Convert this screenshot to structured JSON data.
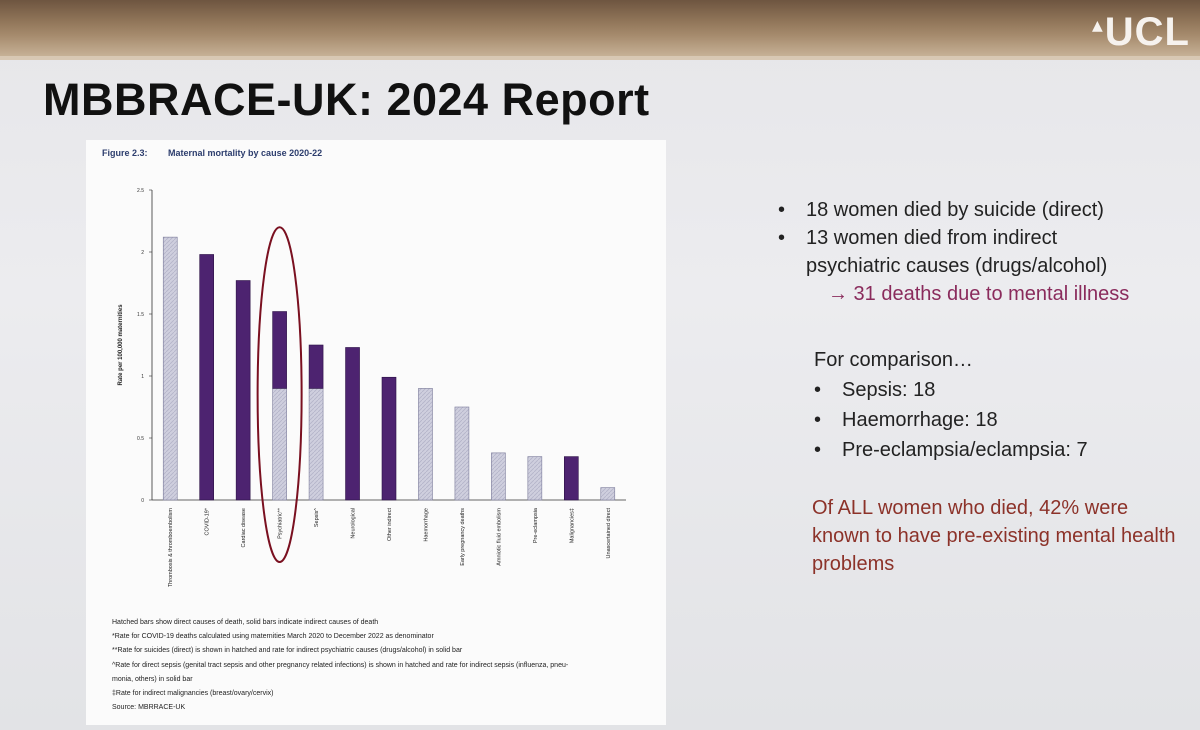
{
  "slide": {
    "logo": "UCL",
    "title": "MBBRACE-UK: 2024 Report"
  },
  "figure": {
    "label": "Figure 2.3:",
    "caption": "Maternal mortality by cause 2020-22",
    "footnotes": [
      "Hatched bars show direct causes of death, solid bars indicate indirect causes of death",
      "*Rate for COVID-19 deaths calculated using maternities March 2020 to December 2022 as denominator",
      "**Rate for suicides (direct) is shown in hatched and rate for indirect psychiatric causes (drugs/alcohol) in solid bar",
      "^Rate for direct sepsis (genital tract sepsis and other pregnancy related infections) is shown in hatched and rate for indirect sepsis (influenza, pneu-",
      "monia, others) in solid bar",
      "‡Rate for indirect malignancies (breast/ovary/cervix)",
      "Source: MBRRACE-UK"
    ]
  },
  "chart_data": {
    "type": "bar",
    "title": "Maternal mortality by cause 2020-22",
    "ylabel": "Rate per 100,000 maternities",
    "xlabel": "",
    "ylim": [
      0,
      2.5
    ],
    "yticks": [
      0,
      0.5,
      1,
      1.5,
      2,
      2.5
    ],
    "ytick_labels": [
      "0",
      "0.5",
      "1",
      "1.5",
      "2",
      "2.5"
    ],
    "categories": [
      "Thrombosis & thromboembolism",
      "COVID-19*",
      "Cardiac disease",
      "Psychiatric**",
      "Sepsis^",
      "Neurological",
      "Other indirect",
      "Haemorrhage",
      "Early pregnancy deaths",
      "Amniotic fluid embolism",
      "Pre-eclampsia",
      "Malignancies‡",
      "Unascertained direct"
    ],
    "stacked": true,
    "series": [
      {
        "name": "Direct (hatched)",
        "color": "#c8c8d8",
        "values": [
          2.12,
          0,
          0,
          0.9,
          0.9,
          0,
          0,
          0.9,
          0.75,
          0.38,
          0.35,
          0,
          0.1
        ]
      },
      {
        "name": "Indirect (solid)",
        "color": "#4d2370",
        "values": [
          0,
          1.98,
          1.77,
          0.62,
          0.35,
          1.23,
          0.99,
          0,
          0,
          0,
          0,
          0.35,
          0
        ]
      }
    ],
    "highlight": {
      "category": "Psychiatric**",
      "shape": "ellipse",
      "color": "#7a1020"
    }
  },
  "bullets": [
    {
      "dot": "•",
      "text": "18 women died by suicide (direct)"
    },
    {
      "dot": "•",
      "text": "13 women died from indirect"
    }
  ],
  "bullet_continuation": "psychiatric causes (drugs/alcohol)",
  "arrow_line": "→ 31 deaths due to mental illness",
  "comparison": {
    "heading": "For comparison…",
    "items": [
      {
        "dot": "•",
        "text": "Sepsis: 18"
      },
      {
        "dot": "•",
        "text": "Haemorrhage: 18"
      },
      {
        "dot": "•",
        "text": "Pre-eclampsia/eclampsia: 7"
      }
    ]
  },
  "closing": "Of ALL women who died, 42% were known to have pre-existing mental health problems"
}
